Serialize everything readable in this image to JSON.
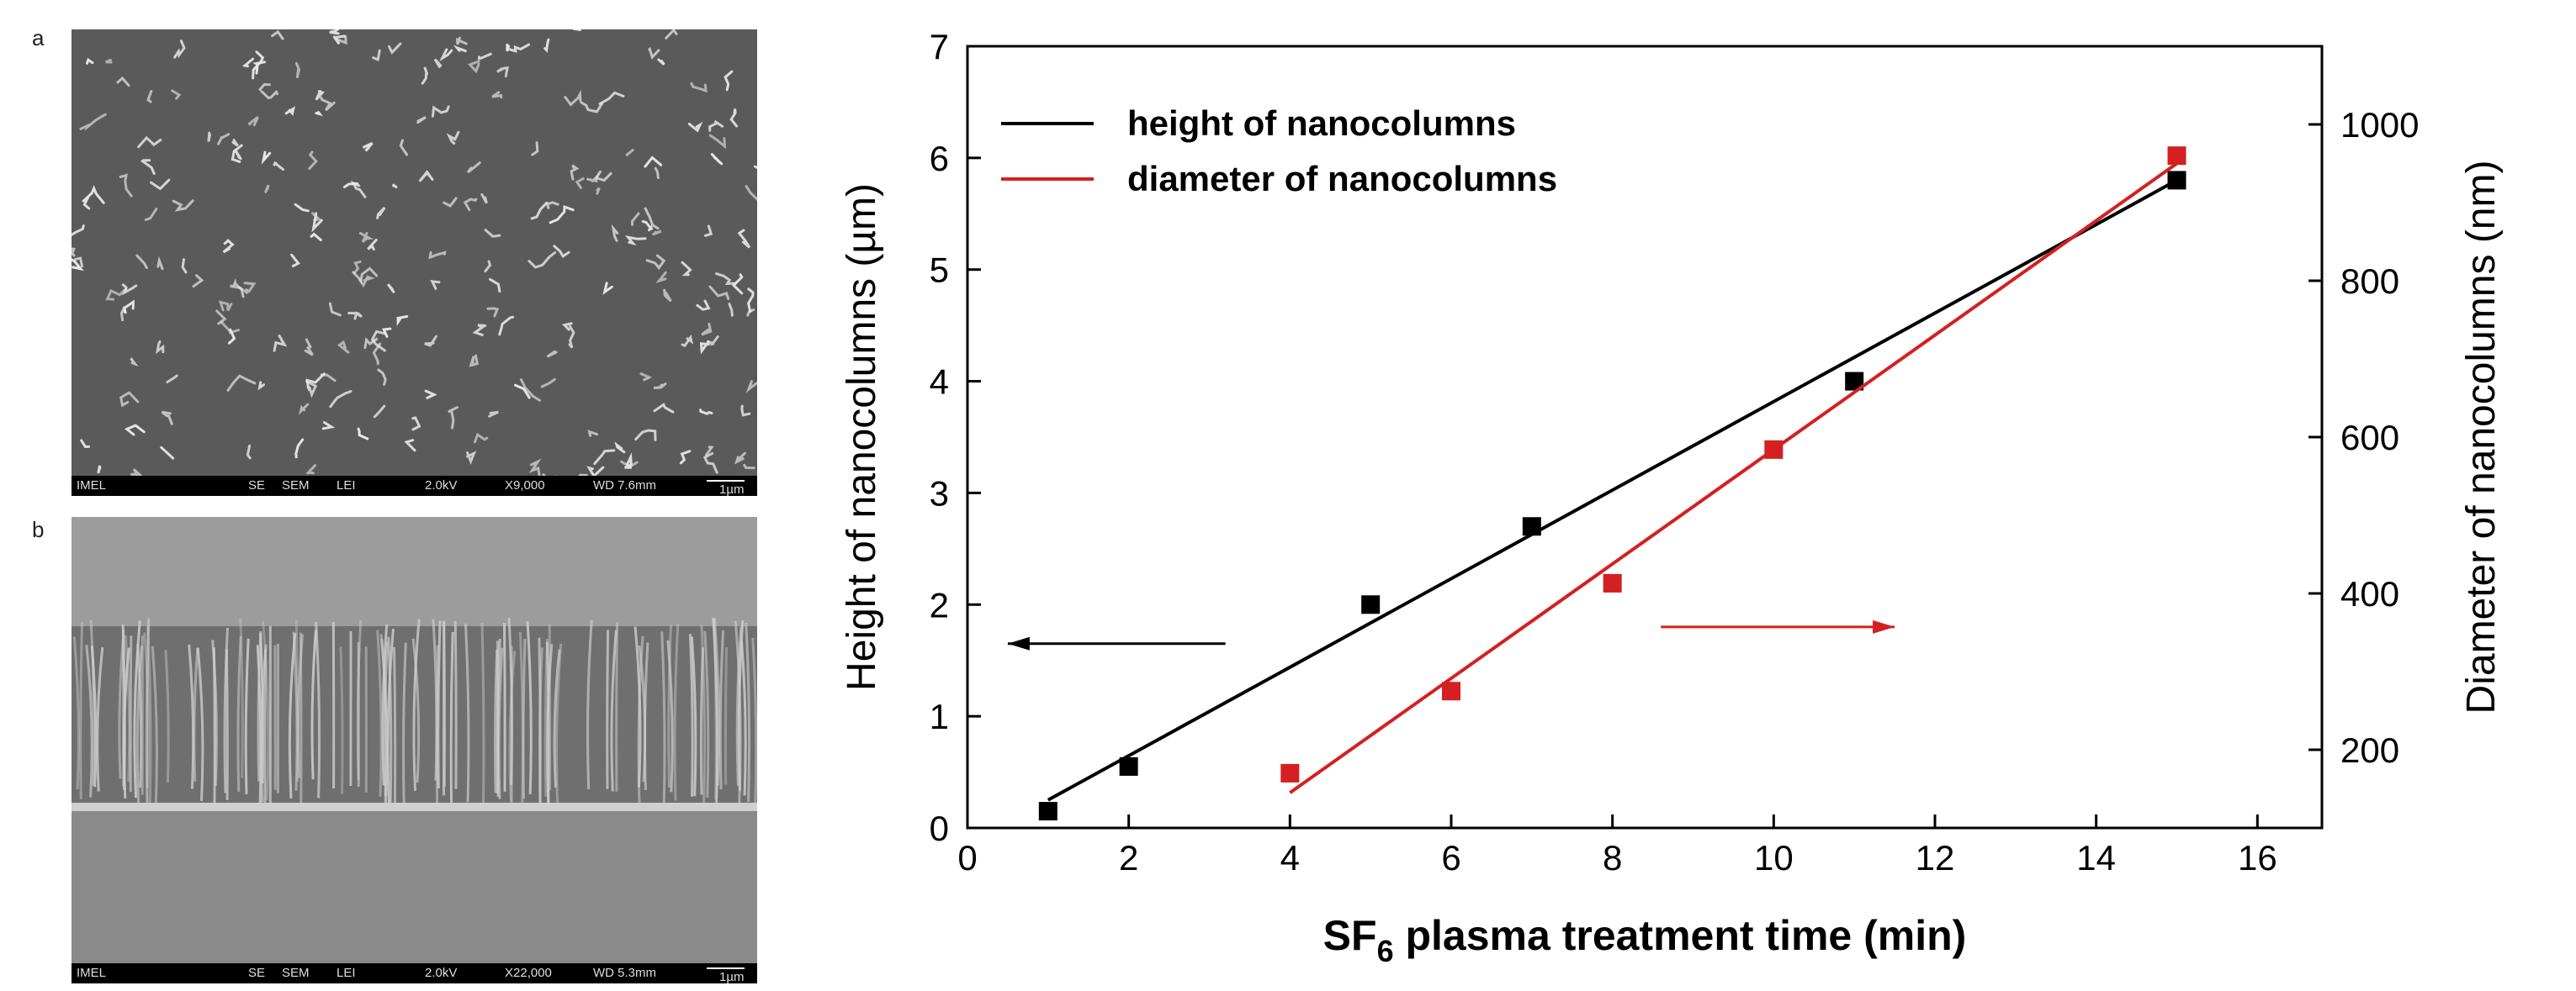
{
  "panels": {
    "a": {
      "label": "a",
      "databar": {
        "lab": "IMEL",
        "detector": "SE",
        "mode": "SEM",
        "lens": "LEI",
        "voltage": "2.0kV",
        "mag": "X9,000",
        "wd": "WD 7.6mm",
        "scale": "1µm"
      }
    },
    "b": {
      "label": "b",
      "databar": {
        "lab": "IMEL",
        "detector": "SE",
        "mode": "SEM",
        "lens": "LEI",
        "voltage": "2.0kV",
        "mag": "X22,000",
        "wd": "WD 5.3mm",
        "scale": "1µm"
      }
    }
  },
  "colors": {
    "height_series": "#000000",
    "diameter_series": "#d42020",
    "sem_bg": "#5a5a5a"
  },
  "chart_data": {
    "type": "scatter",
    "title": "",
    "xlabel_main": "SF",
    "xlabel_sub": "6",
    "xlabel_rest": " plasma treatment time (min)",
    "ylabel": "Height of nanocolumns (µm)",
    "y2label": "Diameter of nanocolumns (nm)",
    "xlim": [
      0,
      16.8
    ],
    "ylim": [
      0,
      7
    ],
    "y2lim": [
      100,
      1100
    ],
    "xticks": [
      0,
      2,
      4,
      6,
      8,
      10,
      12,
      14,
      16
    ],
    "yticks": [
      0,
      1,
      2,
      3,
      4,
      5,
      6,
      7
    ],
    "y2ticks": [
      200,
      400,
      600,
      800,
      1000
    ],
    "series": [
      {
        "name": "height of nanocolumns",
        "axis": "left",
        "points": [
          [
            1,
            0.15
          ],
          [
            2,
            0.55
          ],
          [
            5,
            2.0
          ],
          [
            7,
            2.7
          ],
          [
            11,
            4.0
          ],
          [
            15,
            5.8
          ]
        ],
        "fit": [
          [
            1,
            0.25
          ],
          [
            15,
            5.8
          ]
        ]
      },
      {
        "name": "diameter of nanocolumns",
        "axis": "right",
        "points": [
          [
            4,
            170
          ],
          [
            6,
            275
          ],
          [
            8,
            413
          ],
          [
            10,
            584
          ],
          [
            15,
            960
          ]
        ],
        "fit": [
          [
            4,
            145
          ],
          [
            15,
            950
          ]
        ]
      }
    ],
    "legend": "top-left",
    "annotations": [
      {
        "type": "arrow",
        "axis": "left",
        "from": [
          3.2,
          1.65
        ],
        "to": [
          0.5,
          1.65
        ],
        "direction": "left"
      },
      {
        "type": "arrow",
        "axis": "left",
        "from": [
          8.6,
          1.8
        ],
        "to": [
          11.5,
          1.8
        ],
        "direction": "right"
      }
    ]
  }
}
